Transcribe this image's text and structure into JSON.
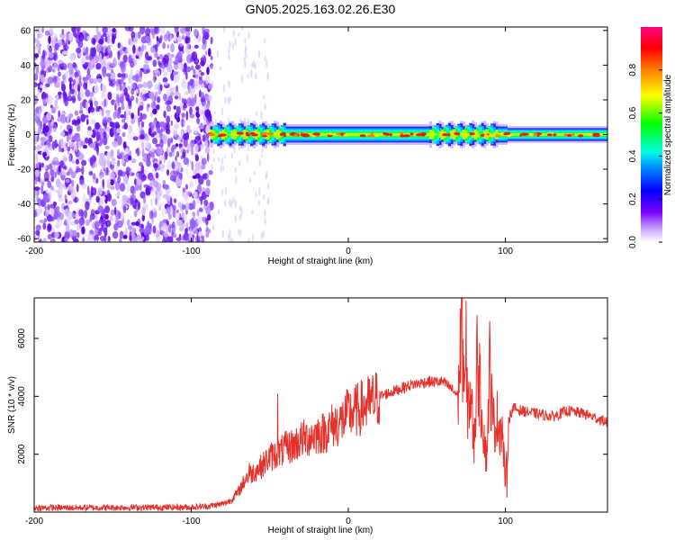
{
  "figure_title": "GN05.2025.163.02.26.E30",
  "chart_data": [
    {
      "type": "heatmap",
      "xlabel": "Height of straight line (km)",
      "ylabel": "Frequency (Hz)",
      "xlim": [
        -200,
        165
      ],
      "ylim": [
        -62,
        62
      ],
      "xticks": [
        -200,
        -100,
        0,
        100
      ],
      "yticks": [
        -60,
        -40,
        -20,
        0,
        20,
        40,
        60
      ],
      "colorbar": {
        "label": "Normalized spectral amplitude",
        "range": [
          0,
          1
        ],
        "ticks": [
          0.0,
          0.2,
          0.4,
          0.6,
          0.8
        ],
        "colormap": "rainbow (purple-blue-cyan-green-yellow-red-magenta)"
      },
      "features": {
        "noise_region_x": [
          -200,
          -87
        ],
        "signal_band_x": [
          -88,
          165
        ],
        "signal_band_center_hz": 0,
        "signal_band_halfwidth_hz": [
          2,
          6
        ]
      }
    },
    {
      "type": "line",
      "xlabel": "Height of straight line (km)",
      "ylabel": "SNR (10 * v/v)",
      "xlim": [
        -200,
        165
      ],
      "ylim": [
        0,
        7400
      ],
      "xticks": [
        -200,
        -100,
        0,
        100
      ],
      "yticks": [
        2000,
        4000,
        6000
      ],
      "color": "#e8302a",
      "series": [
        {
          "x": [
            -200,
            -180,
            -160,
            -140,
            -120,
            -100,
            -90,
            -80,
            -75,
            -70,
            -65,
            -60,
            -55,
            -50,
            -45,
            -40,
            -35,
            -30,
            -25,
            -20,
            -15,
            -10,
            -5,
            0,
            5,
            10,
            15,
            20,
            25,
            30,
            40,
            50,
            60,
            65,
            70,
            72,
            75,
            78,
            80,
            82,
            85,
            88,
            90,
            92,
            95,
            98,
            100,
            102,
            105,
            110,
            120,
            130,
            140,
            150,
            160,
            165
          ],
          "values": [
            150,
            150,
            150,
            160,
            160,
            170,
            200,
            280,
            400,
            700,
            1200,
            1400,
            1600,
            1900,
            2000,
            2200,
            2300,
            2500,
            2600,
            2700,
            2750,
            3000,
            3100,
            3400,
            3500,
            3650,
            3800,
            4000,
            4100,
            4200,
            4400,
            4500,
            4500,
            4300,
            4000,
            6500,
            3600,
            4100,
            2200,
            5200,
            3500,
            1800,
            5000,
            3000,
            3200,
            2800,
            1000,
            3200,
            3600,
            3500,
            3400,
            3300,
            3500,
            3400,
            3200,
            3100
          ]
        }
      ],
      "spikes": [
        {
          "x": -63,
          "y": 1700
        },
        {
          "x": -45,
          "y": 4100
        },
        {
          "x": 75,
          "y": 7300
        },
        {
          "x": 82,
          "y": 6800
        },
        {
          "x": 90,
          "y": 6600
        },
        {
          "x": 101,
          "y": 500
        }
      ]
    }
  ]
}
